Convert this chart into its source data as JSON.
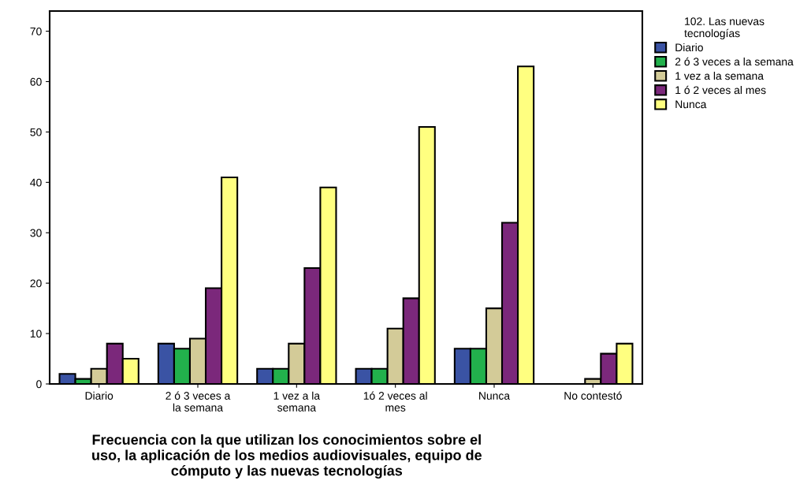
{
  "chart_data": {
    "type": "bar",
    "xlabel": "Frecuencia con la que utilizan los conocimientos sobre el\nuso, la aplicación de los medios audiovisuales, equipo de\ncómputo y las nuevas tecnologías",
    "legend_title": "102. Las nuevas\ntecnologías",
    "categories": [
      "Diario",
      "2 ó 3 veces a\nla semana",
      "1 vez a la\nsemana",
      "1ó 2 veces al\nmes",
      "Nunca",
      "No contestó"
    ],
    "series": [
      {
        "name": "Diario",
        "color": "#3a53a4",
        "values": [
          2,
          8,
          3,
          3,
          7,
          null
        ]
      },
      {
        "name": "2 ó 3 veces a la semana",
        "color": "#22b14c",
        "values": [
          1,
          7,
          3,
          3,
          7,
          null
        ]
      },
      {
        "name": "1 vez a la semana",
        "color": "#d3cb98",
        "values": [
          3,
          9,
          8,
          11,
          15,
          1
        ]
      },
      {
        "name": "1 ó 2 veces al mes",
        "color": "#7b287b",
        "values": [
          8,
          19,
          23,
          17,
          32,
          6
        ]
      },
      {
        "name": "Nunca",
        "color": "#ffff80",
        "values": [
          5,
          41,
          39,
          51,
          63,
          8
        ]
      }
    ],
    "ylim": [
      0,
      74
    ],
    "yticks": [
      0,
      10,
      20,
      30,
      40,
      50,
      60,
      70
    ],
    "grid": false,
    "legend": "top right"
  }
}
